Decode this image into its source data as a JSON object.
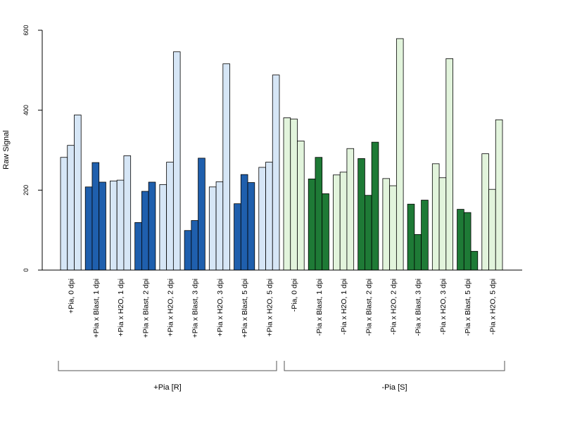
{
  "chart_data": {
    "type": "bar",
    "ylabel": "Raw Signal",
    "xlabel": "",
    "ylim": [
      0,
      600
    ],
    "yticks": [
      0,
      200,
      400,
      600
    ],
    "bars_per_category": 3,
    "categories": [
      "+Pia, 0 dpi",
      "+Pia x Blast, 1 dpi",
      "+Pia x H2O, 1 dpi",
      "+Pia x Blast, 2 dpi",
      "+Pia x H2O, 2 dpi",
      "+Pia x Blast, 3 dpi",
      "+Pia x H2O, 3 dpi",
      "+Pia x Blast, 5 dpi",
      "+Pia x H2O, 5 dpi",
      "-Pia, 0 dpi",
      "-Pia x Blast, 1 dpi",
      "-Pia x H2O, 1 dpi",
      "-Pia x Blast, 2 dpi",
      "-Pia x H2O, 2 dpi",
      "-Pia x Blast, 3 dpi",
      "-Pia x H2O, 3 dpi",
      "-Pia x Blast, 5 dpi",
      "-Pia x H2O, 5 dpi"
    ],
    "category_colors": [
      "#d6e6f6",
      "#1f5fad",
      "#d6e6f6",
      "#1f5fad",
      "#d6e6f6",
      "#1f5fad",
      "#d6e6f6",
      "#1f5fad",
      "#d6e6f6",
      "#e2f4dc",
      "#1e7a36",
      "#e2f4dc",
      "#1e7a36",
      "#e2f4dc",
      "#1e7a36",
      "#e2f4dc",
      "#1e7a36",
      "#e2f4dc"
    ],
    "values": [
      [
        282,
        312,
        388
      ],
      [
        208,
        269,
        220
      ],
      [
        223,
        225,
        286
      ],
      [
        119,
        197,
        220
      ],
      [
        214,
        270,
        546
      ],
      [
        99,
        124,
        280
      ],
      [
        208,
        221,
        516
      ],
      [
        166,
        239,
        219
      ],
      [
        257,
        270,
        488
      ],
      [
        381,
        378,
        323
      ],
      [
        228,
        282,
        191
      ],
      [
        238,
        245,
        304
      ],
      [
        279,
        187,
        320
      ],
      [
        229,
        211,
        579
      ],
      [
        165,
        89,
        175
      ],
      [
        266,
        231,
        529
      ],
      [
        152,
        144,
        47
      ],
      [
        291,
        202,
        376
      ]
    ],
    "groups": [
      {
        "label": "+Pia [R]",
        "start": 0,
        "end": 8
      },
      {
        "label": "-Pia [S]",
        "start": 9,
        "end": 17
      }
    ],
    "grid": false,
    "legend": "none"
  }
}
